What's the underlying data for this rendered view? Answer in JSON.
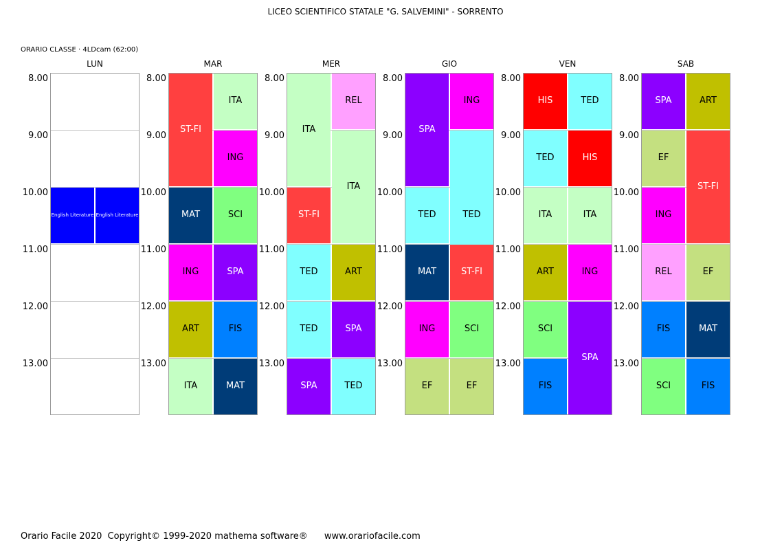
{
  "header": {
    "title": "LICEO SCIENTIFICO STATALE \"G. SALVEMINI\" - SORRENTO",
    "class_info": "ORARIO CLASSE  ·  4LDcam (62:00)"
  },
  "time_labels": [
    "8.00",
    "9.00",
    "10.00",
    "11.00",
    "12.00",
    "13.00"
  ],
  "days": [
    {
      "name": "LUN",
      "lessons": [
        {
          "label": "English Literature",
          "col": 0,
          "start": 2,
          "span": 1,
          "bg": "#0000ff",
          "fg": "#ffffff",
          "small": true
        },
        {
          "label": "English Literature",
          "col": 1,
          "start": 2,
          "span": 1,
          "bg": "#0000ff",
          "fg": "#ffffff",
          "small": true
        }
      ]
    },
    {
      "name": "MAR",
      "lessons": [
        {
          "label": "ST-FI",
          "col": 0,
          "start": 0,
          "span": 2,
          "bg": "#ff4040",
          "fg": "#ffffff"
        },
        {
          "label": "ITA",
          "col": 1,
          "start": 0,
          "span": 1,
          "bg": "#c4ffc4",
          "fg": "#000000"
        },
        {
          "label": "ING",
          "col": 1,
          "start": 1,
          "span": 1,
          "bg": "#ff00ff",
          "fg": "#000000"
        },
        {
          "label": "MAT",
          "col": 0,
          "start": 2,
          "span": 1,
          "bg": "#003c78",
          "fg": "#ffffff"
        },
        {
          "label": "SCI",
          "col": 1,
          "start": 2,
          "span": 1,
          "bg": "#80ff80",
          "fg": "#000000"
        },
        {
          "label": "ING",
          "col": 0,
          "start": 3,
          "span": 1,
          "bg": "#ff00ff",
          "fg": "#000000"
        },
        {
          "label": "SPA",
          "col": 1,
          "start": 3,
          "span": 1,
          "bg": "#8c00ff",
          "fg": "#ffffff"
        },
        {
          "label": "ART",
          "col": 0,
          "start": 4,
          "span": 1,
          "bg": "#c0c000",
          "fg": "#000000"
        },
        {
          "label": "FIS",
          "col": 1,
          "start": 4,
          "span": 1,
          "bg": "#0080ff",
          "fg": "#000000"
        },
        {
          "label": "ITA",
          "col": 0,
          "start": 5,
          "span": 1,
          "bg": "#c4ffc4",
          "fg": "#000000"
        },
        {
          "label": "MAT",
          "col": 1,
          "start": 5,
          "span": 1,
          "bg": "#003c78",
          "fg": "#ffffff"
        }
      ]
    },
    {
      "name": "MER",
      "lessons": [
        {
          "label": "ITA",
          "col": 0,
          "start": 0,
          "span": 2,
          "bg": "#c4ffc4",
          "fg": "#000000"
        },
        {
          "label": "REL",
          "col": 1,
          "start": 0,
          "span": 1,
          "bg": "#ffa0ff",
          "fg": "#000000"
        },
        {
          "label": "ITA",
          "col": 1,
          "start": 1,
          "span": 2,
          "bg": "#c4ffc4",
          "fg": "#000000"
        },
        {
          "label": "ST-FI",
          "col": 0,
          "start": 2,
          "span": 1,
          "bg": "#ff4040",
          "fg": "#ffffff"
        },
        {
          "label": "TED",
          "col": 0,
          "start": 3,
          "span": 1,
          "bg": "#80ffff",
          "fg": "#000000"
        },
        {
          "label": "ART",
          "col": 1,
          "start": 3,
          "span": 1,
          "bg": "#c0c000",
          "fg": "#000000"
        },
        {
          "label": "TED",
          "col": 0,
          "start": 4,
          "span": 1,
          "bg": "#80ffff",
          "fg": "#000000"
        },
        {
          "label": "SPA",
          "col": 1,
          "start": 4,
          "span": 1,
          "bg": "#8c00ff",
          "fg": "#ffffff"
        },
        {
          "label": "SPA",
          "col": 0,
          "start": 5,
          "span": 1,
          "bg": "#8c00ff",
          "fg": "#ffffff"
        },
        {
          "label": "TED",
          "col": 1,
          "start": 5,
          "span": 1,
          "bg": "#80ffff",
          "fg": "#000000"
        }
      ]
    },
    {
      "name": "GIO",
      "lessons": [
        {
          "label": "SPA",
          "col": 0,
          "start": 0,
          "span": 2,
          "bg": "#8c00ff",
          "fg": "#ffffff"
        },
        {
          "label": "ING",
          "col": 1,
          "start": 0,
          "span": 1,
          "bg": "#ff00ff",
          "fg": "#000000"
        },
        {
          "label": "TED",
          "col": 1,
          "start": 1,
          "span": 3,
          "bg": "#80ffff",
          "fg": "#000000"
        },
        {
          "label": "TED",
          "col": 0,
          "start": 2,
          "span": 1,
          "bg": "#80ffff",
          "fg": "#000000"
        },
        {
          "label": "MAT",
          "col": 0,
          "start": 3,
          "span": 1,
          "bg": "#003c78",
          "fg": "#ffffff"
        },
        {
          "label": "ST-FI",
          "col": 1,
          "start": 3,
          "span": 1,
          "bg": "#ff4040",
          "fg": "#ffffff"
        },
        {
          "label": "ING",
          "col": 0,
          "start": 4,
          "span": 1,
          "bg": "#ff00ff",
          "fg": "#000000"
        },
        {
          "label": "SCI",
          "col": 1,
          "start": 4,
          "span": 1,
          "bg": "#80ff80",
          "fg": "#000000"
        },
        {
          "label": "EF",
          "col": 0,
          "start": 5,
          "span": 1,
          "bg": "#c4e080",
          "fg": "#000000"
        },
        {
          "label": "EF",
          "col": 1,
          "start": 5,
          "span": 1,
          "bg": "#c4e080",
          "fg": "#000000"
        }
      ]
    },
    {
      "name": "VEN",
      "lessons": [
        {
          "label": "HIS",
          "col": 0,
          "start": 0,
          "span": 1,
          "bg": "#ff0000",
          "fg": "#ffffff"
        },
        {
          "label": "TED",
          "col": 1,
          "start": 0,
          "span": 1,
          "bg": "#80ffff",
          "fg": "#000000"
        },
        {
          "label": "TED",
          "col": 0,
          "start": 1,
          "span": 1,
          "bg": "#80ffff",
          "fg": "#000000"
        },
        {
          "label": "HIS",
          "col": 1,
          "start": 1,
          "span": 1,
          "bg": "#ff0000",
          "fg": "#ffffff"
        },
        {
          "label": "ITA",
          "col": 0,
          "start": 2,
          "span": 1,
          "bg": "#c4ffc4",
          "fg": "#000000"
        },
        {
          "label": "ITA",
          "col": 1,
          "start": 2,
          "span": 1,
          "bg": "#c4ffc4",
          "fg": "#000000"
        },
        {
          "label": "ART",
          "col": 0,
          "start": 3,
          "span": 1,
          "bg": "#c0c000",
          "fg": "#000000"
        },
        {
          "label": "ING",
          "col": 1,
          "start": 3,
          "span": 1,
          "bg": "#ff00ff",
          "fg": "#000000"
        },
        {
          "label": "SCI",
          "col": 0,
          "start": 4,
          "span": 1,
          "bg": "#80ff80",
          "fg": "#000000"
        },
        {
          "label": "SPA",
          "col": 1,
          "start": 4,
          "span": 2,
          "bg": "#8c00ff",
          "fg": "#ffffff"
        },
        {
          "label": "FIS",
          "col": 0,
          "start": 5,
          "span": 1,
          "bg": "#0080ff",
          "fg": "#000000"
        }
      ]
    },
    {
      "name": "SAB",
      "lessons": [
        {
          "label": "SPA",
          "col": 0,
          "start": 0,
          "span": 1,
          "bg": "#8c00ff",
          "fg": "#ffffff"
        },
        {
          "label": "ART",
          "col": 1,
          "start": 0,
          "span": 1,
          "bg": "#c0c000",
          "fg": "#000000"
        },
        {
          "label": "EF",
          "col": 0,
          "start": 1,
          "span": 1,
          "bg": "#c4e080",
          "fg": "#000000"
        },
        {
          "label": "ST-FI",
          "col": 1,
          "start": 1,
          "span": 2,
          "bg": "#ff4040",
          "fg": "#ffffff"
        },
        {
          "label": "ING",
          "col": 0,
          "start": 2,
          "span": 1,
          "bg": "#ff00ff",
          "fg": "#000000"
        },
        {
          "label": "REL",
          "col": 0,
          "start": 3,
          "span": 1,
          "bg": "#ffa0ff",
          "fg": "#000000"
        },
        {
          "label": "EF",
          "col": 1,
          "start": 3,
          "span": 1,
          "bg": "#c4e080",
          "fg": "#000000"
        },
        {
          "label": "FIS",
          "col": 0,
          "start": 4,
          "span": 1,
          "bg": "#0080ff",
          "fg": "#000000"
        },
        {
          "label": "MAT",
          "col": 1,
          "start": 4,
          "span": 1,
          "bg": "#003c78",
          "fg": "#ffffff"
        },
        {
          "label": "SCI",
          "col": 0,
          "start": 5,
          "span": 1,
          "bg": "#80ff80",
          "fg": "#000000"
        },
        {
          "label": "FIS",
          "col": 1,
          "start": 5,
          "span": 1,
          "bg": "#0080ff",
          "fg": "#000000"
        }
      ]
    }
  ],
  "footer": {
    "software": "Orario Facile 2020",
    "copyright": "Copyright© 1999-2020 mathema software®",
    "website": "www.orariofacile.com"
  }
}
